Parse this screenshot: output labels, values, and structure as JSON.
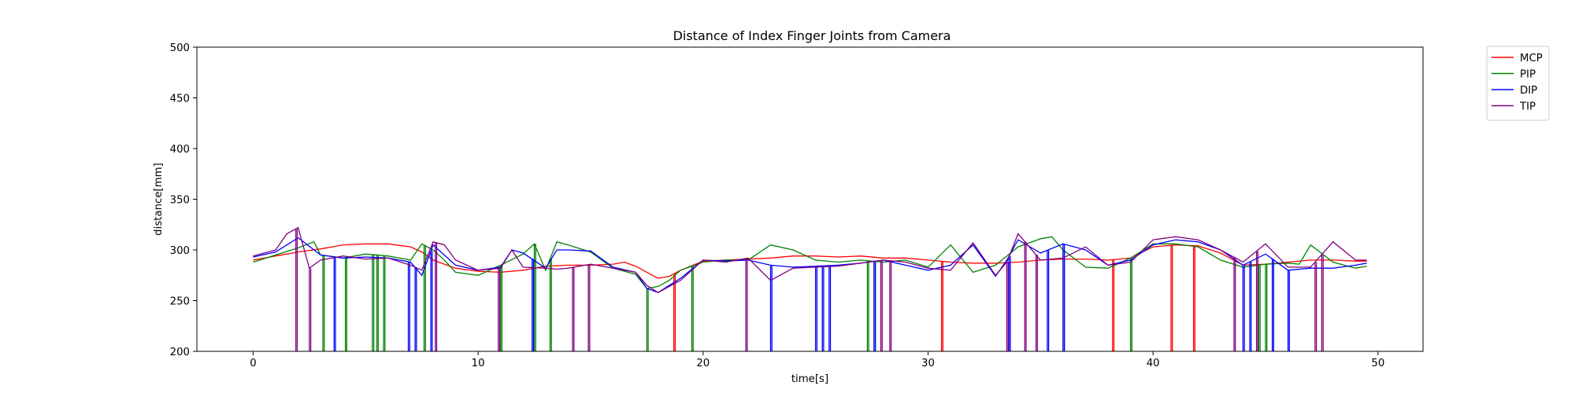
{
  "chart_data": {
    "type": "line",
    "title": "Distance of Index Finger Joints from Camera",
    "xlabel": "time[s]",
    "ylabel": "distance[mm]",
    "xlim": [
      -2.5,
      52
    ],
    "ylim": [
      200,
      500
    ],
    "xticks": [
      0,
      10,
      20,
      30,
      40,
      50
    ],
    "yticks": [
      200,
      250,
      300,
      350,
      400,
      450,
      500
    ],
    "grid": false,
    "legend_position": "outside-top-right",
    "series": [
      {
        "name": "MCP",
        "color": "#ff0000",
        "x": [
          0,
          1,
          2,
          3,
          4,
          5,
          6,
          7,
          7.5,
          8,
          9,
          10,
          11,
          12,
          13,
          14,
          15,
          16,
          16.5,
          17,
          17.5,
          18,
          18.5,
          19,
          20,
          21,
          22,
          23,
          24,
          25,
          26,
          27,
          28,
          29,
          30,
          31,
          32,
          33,
          34,
          35,
          36,
          37,
          38,
          39,
          40,
          41,
          42,
          43,
          44,
          45,
          46,
          47,
          48,
          49,
          49.5
        ],
        "y": [
          290,
          294,
          298,
          301,
          305,
          306,
          306,
          303,
          298,
          290,
          282,
          279,
          278,
          280,
          284,
          285,
          285,
          286,
          288,
          284,
          278,
          272,
          274,
          280,
          289,
          290,
          291,
          292,
          294,
          294,
          293,
          294,
          292,
          292,
          290,
          288,
          287,
          287,
          288,
          290,
          291,
          291,
          290,
          292,
          303,
          305,
          304,
          297,
          285,
          286,
          288,
          290,
          290,
          289,
          289
        ],
        "dropouts": [
          18.7,
          30.6,
          38.2,
          40.8,
          41.8
        ]
      },
      {
        "name": "PIP",
        "color": "#008000",
        "x": [
          0,
          1,
          2,
          2.7,
          3,
          4,
          5,
          6,
          7,
          7.5,
          8,
          8.5,
          9,
          10,
          11,
          12,
          12.5,
          13,
          13.5,
          14,
          15,
          16,
          17,
          17.5,
          18,
          18.5,
          19,
          20,
          21,
          22,
          23,
          24,
          25,
          26,
          27,
          28,
          29,
          30,
          31,
          32,
          33,
          34,
          35,
          35.5,
          36,
          37,
          38,
          39,
          40,
          41,
          42,
          43,
          44,
          45,
          46,
          46.5,
          47,
          48,
          49,
          49.5
        ],
        "y": [
          288,
          295,
          302,
          308,
          295,
          292,
          296,
          294,
          290,
          306,
          300,
          290,
          278,
          275,
          285,
          296,
          306,
          280,
          308,
          305,
          298,
          282,
          276,
          262,
          264,
          270,
          280,
          288,
          290,
          290,
          305,
          300,
          290,
          288,
          290,
          288,
          290,
          283,
          305,
          278,
          285,
          303,
          311,
          313,
          300,
          283,
          282,
          292,
          306,
          306,
          303,
          290,
          283,
          286,
          287,
          286,
          305,
          288,
          282,
          284
        ],
        "dropouts": [
          3.1,
          4.1,
          5.3,
          5.5,
          5.8,
          7.6,
          11.0,
          12.5,
          13.2,
          17.5,
          19.5,
          27.3,
          27.6,
          36.0,
          39.0,
          44.7,
          45.0
        ]
      },
      {
        "name": "DIP",
        "color": "#0000ff",
        "x": [
          0,
          1,
          1.5,
          2,
          3,
          4,
          5,
          6,
          7,
          7.5,
          8,
          9,
          10,
          11,
          11.5,
          12,
          13,
          13.5,
          14,
          15,
          16,
          17,
          17.5,
          18,
          18.5,
          19,
          20,
          21,
          22,
          23,
          24,
          25,
          26,
          27,
          28,
          29,
          30,
          31,
          32,
          33,
          33.5,
          34,
          35,
          36,
          37,
          38,
          39,
          40,
          41,
          42,
          43,
          44,
          45,
          46,
          47,
          48,
          49,
          49.5
        ],
        "y": [
          293,
          298,
          305,
          312,
          295,
          292,
          293,
          292,
          288,
          275,
          305,
          285,
          280,
          283,
          300,
          297,
          282,
          300,
          300,
          299,
          283,
          278,
          262,
          258,
          265,
          272,
          290,
          289,
          290,
          285,
          283,
          284,
          285,
          287,
          290,
          285,
          280,
          285,
          305,
          274,
          290,
          310,
          297,
          306,
          300,
          285,
          290,
          305,
          310,
          308,
          300,
          285,
          296,
          280,
          282,
          282,
          285,
          287
        ],
        "dropouts": [
          3.6,
          6.9,
          7.2,
          7.9,
          12.4,
          23.0,
          25.0,
          25.3,
          25.6,
          27.6,
          33.6,
          35.3,
          36.0,
          44.0,
          44.3,
          45.3,
          46.0
        ]
      },
      {
        "name": "TIP",
        "color": "#800080",
        "x": [
          0,
          1,
          1.5,
          2,
          2.5,
          3,
          4,
          5,
          6,
          7,
          7.5,
          8,
          8.5,
          9,
          10,
          11,
          11.5,
          12,
          13,
          13.5,
          14,
          15,
          16,
          17,
          17.5,
          18,
          18.5,
          19,
          20,
          21,
          22,
          23,
          24,
          25,
          26,
          27,
          28,
          29,
          30,
          31,
          32,
          33,
          33.5,
          34,
          35,
          36,
          37,
          38,
          39,
          40,
          41,
          42,
          43,
          44,
          45,
          46,
          47,
          48,
          49,
          49.5
        ],
        "y": [
          294,
          300,
          316,
          322,
          282,
          290,
          294,
          291,
          292,
          285,
          280,
          308,
          305,
          290,
          280,
          282,
          300,
          283,
          282,
          281,
          282,
          286,
          282,
          278,
          265,
          258,
          264,
          270,
          290,
          288,
          292,
          270,
          282,
          283,
          284,
          287,
          290,
          288,
          282,
          280,
          307,
          275,
          288,
          316,
          290,
          292,
          303,
          285,
          288,
          310,
          313,
          310,
          300,
          288,
          306,
          283,
          283,
          308,
          290,
          290
        ],
        "dropouts": [
          1.9,
          2.5,
          8.1,
          10.9,
          14.2,
          14.9,
          21.9,
          27.9,
          28.3,
          33.5,
          34.3,
          34.8,
          43.6,
          44.6,
          47.2,
          47.5
        ]
      }
    ]
  }
}
